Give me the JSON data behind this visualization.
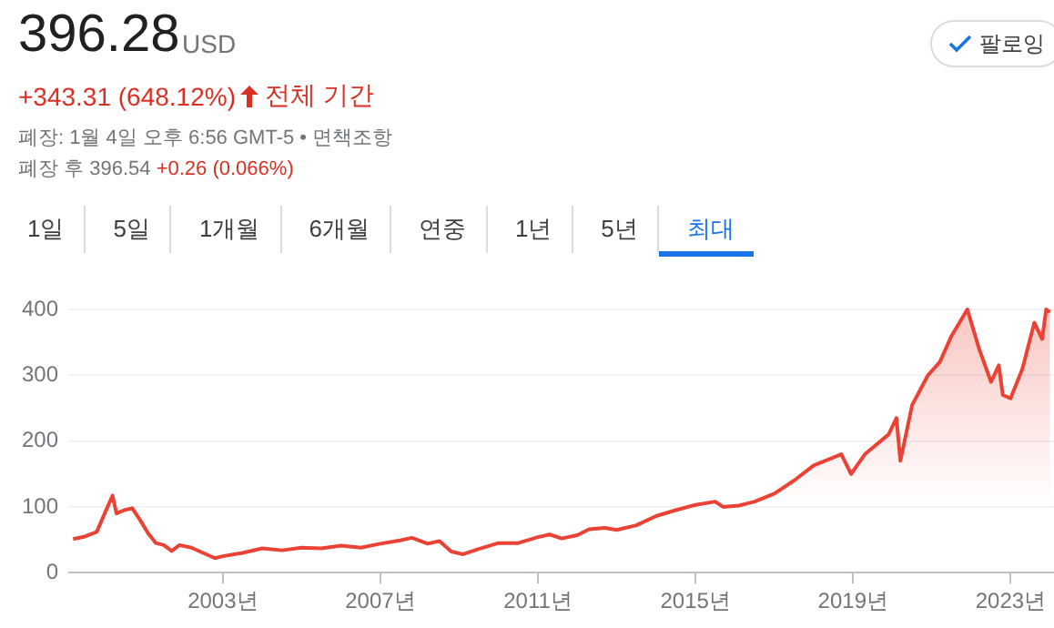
{
  "chart_data": {
    "type": "area",
    "title": "396.28",
    "annotations": [
      "USD",
      "+343.31 (648.12%)",
      "전체 기간",
      "폐장: 1월 4일 오후 6:56 GMT-5 • 면책조항",
      "폐장 후 396.54",
      "+0.26 (0.066%)",
      "1일",
      "5일",
      "1개월",
      "6개월",
      "연중",
      "1년",
      "5년",
      "최대",
      "팔로잉"
    ],
    "x": [
      1999.2,
      1999.5,
      1999.8,
      2000.0,
      2000.2,
      2000.3,
      2000.5,
      2000.7,
      2000.9,
      2001.1,
      2001.3,
      2001.5,
      2001.7,
      2001.9,
      2002.2,
      2002.5,
      2002.8,
      2003.0,
      2003.5,
      2004.0,
      2004.5,
      2005.0,
      2005.5,
      2006.0,
      2006.5,
      2007.0,
      2007.5,
      2007.8,
      2008.2,
      2008.5,
      2008.8,
      2009.1,
      2009.5,
      2010.0,
      2010.5,
      2011.0,
      2011.3,
      2011.6,
      2012.0,
      2012.3,
      2012.7,
      2013.0,
      2013.5,
      2014.0,
      2014.5,
      2015.0,
      2015.5,
      2015.7,
      2016.1,
      2016.5,
      2017.0,
      2017.5,
      2018.0,
      2018.7,
      2018.95,
      2019.3,
      2019.9,
      2020.1,
      2020.2,
      2020.5,
      2020.9,
      2021.2,
      2021.5,
      2021.9,
      2022.2,
      2022.5,
      2022.7,
      2022.8,
      2023.0,
      2023.3,
      2023.6,
      2023.8,
      2023.9,
      2024.0
    ],
    "values": [
      51,
      55,
      62,
      90,
      117,
      90,
      95,
      98,
      80,
      60,
      45,
      42,
      33,
      42,
      38,
      30,
      22,
      25,
      30,
      37,
      34,
      38,
      37,
      41,
      38,
      44,
      49,
      53,
      44,
      48,
      32,
      28,
      36,
      45,
      45,
      54,
      58,
      52,
      57,
      66,
      68,
      65,
      72,
      86,
      95,
      103,
      108,
      100,
      102,
      108,
      120,
      140,
      163,
      180,
      150,
      180,
      210,
      235,
      170,
      255,
      300,
      320,
      360,
      400,
      340,
      290,
      315,
      270,
      265,
      310,
      380,
      355,
      400,
      396
    ],
    "color": "#ea4335",
    "xlim": [
      1999.1,
      2024.1
    ],
    "xticks": [
      {
        "value": 2003,
        "label": "2003년"
      },
      {
        "value": 2007,
        "label": "2007년"
      },
      {
        "value": 2011,
        "label": "2011년"
      },
      {
        "value": 2015,
        "label": "2015년"
      },
      {
        "value": 2019,
        "label": "2019년"
      },
      {
        "value": 2023,
        "label": "2023년"
      }
    ],
    "ylim": [
      0,
      400
    ],
    "yticks": [
      0,
      100,
      200,
      300,
      400
    ],
    "grid": "y"
  }
}
